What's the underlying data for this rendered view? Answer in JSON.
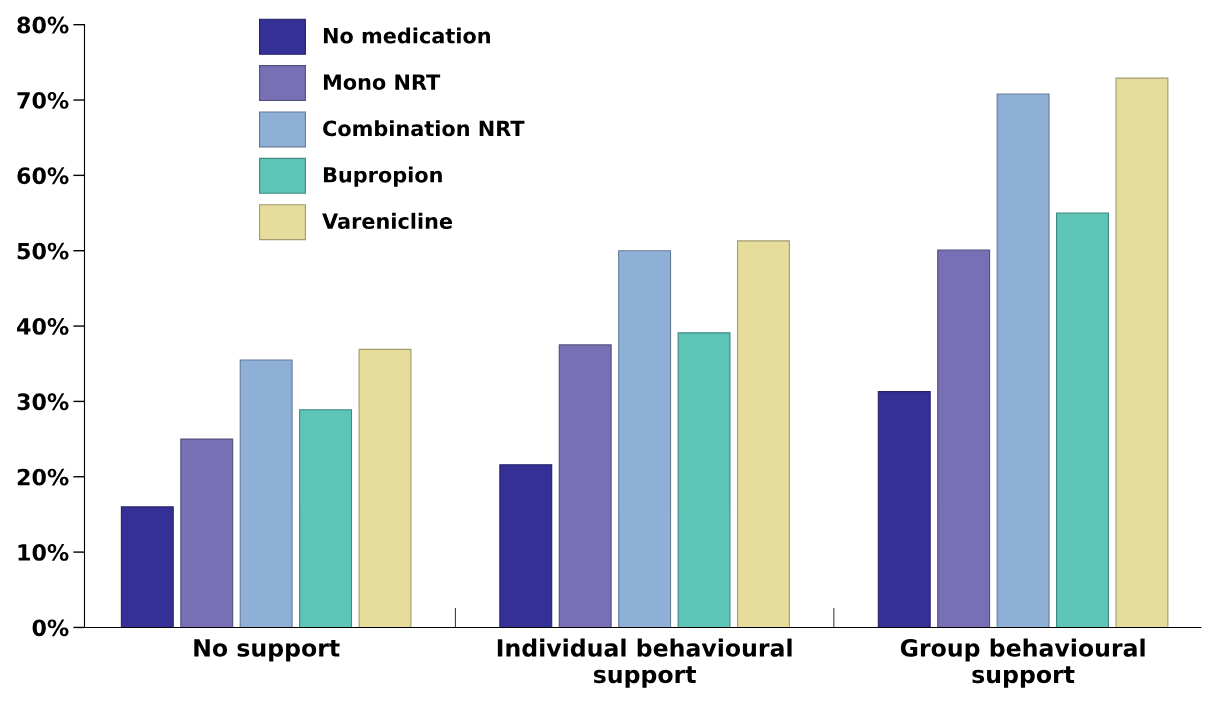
{
  "chart_data": {
    "type": "bar",
    "categories": [
      "No support",
      "Individual behavioural\nsupport",
      "Group behavioural\nsupport"
    ],
    "series": [
      {
        "name": "No medication",
        "color": "#343096",
        "values": [
          16,
          21.6,
          31.3
        ]
      },
      {
        "name": "Mono NRT",
        "color": "#7870b4",
        "values": [
          25,
          37.5,
          50.1
        ]
      },
      {
        "name": "Combination NRT",
        "color": "#8fb0d6",
        "values": [
          35.5,
          50,
          70.8
        ]
      },
      {
        "name": "Bupropion",
        "color": "#5ec4b8",
        "values": [
          28.9,
          39.1,
          55
        ]
      },
      {
        "name": "Varenicline",
        "color": "#e6dd9c",
        "values": [
          36.9,
          51.3,
          72.9
        ]
      }
    ],
    "ylim": [
      0,
      80
    ],
    "yticks": [
      {
        "value": 0,
        "label": "0%"
      },
      {
        "value": 10,
        "label": "10%"
      },
      {
        "value": 20,
        "label": "20%"
      },
      {
        "value": 30,
        "label": "30%"
      },
      {
        "value": 40,
        "label": "40%"
      },
      {
        "value": 50,
        "label": "50%"
      },
      {
        "value": 60,
        "label": "60%"
      },
      {
        "value": 70,
        "label": "70%"
      },
      {
        "value": 80,
        "label": "80%"
      }
    ],
    "grid": false,
    "legend": "top left"
  }
}
